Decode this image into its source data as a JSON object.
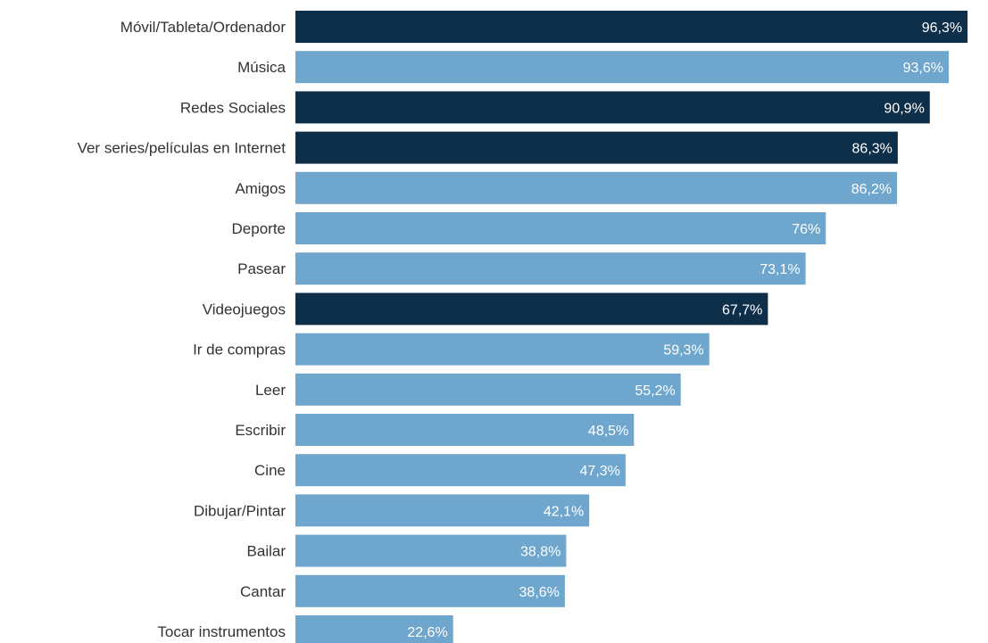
{
  "chart_data": {
    "type": "bar",
    "orientation": "horizontal",
    "title": "",
    "xlabel": "",
    "ylabel": "",
    "grid": false,
    "legend": "none",
    "categories": [
      "Móvil/Tableta/Ordenador",
      "Música",
      "Redes Sociales",
      "Ver series/películas en Internet",
      "Amigos",
      "Deporte",
      "Pasear",
      "Videojuegos",
      "Ir de compras",
      "Leer",
      "Escribir",
      "Cine",
      "Dibujar/Pintar",
      "Bailar",
      "Cantar",
      "Tocar instrumentos"
    ],
    "values": [
      96.3,
      93.6,
      90.9,
      86.3,
      86.2,
      76,
      73.1,
      67.7,
      59.3,
      55.2,
      48.5,
      47.3,
      42.1,
      38.8,
      38.6,
      22.6
    ],
    "value_labels": [
      "96,3%",
      "93,6%",
      "90,9%",
      "86,3%",
      "86,2%",
      "76%",
      "73,1%",
      "67,7%",
      "59,3%",
      "55,2%",
      "48,5%",
      "47,3%",
      "42,1%",
      "38,8%",
      "38,6%",
      "22,6%"
    ],
    "highlighted": [
      true,
      false,
      true,
      true,
      false,
      false,
      false,
      true,
      false,
      false,
      false,
      false,
      false,
      false,
      false,
      false
    ],
    "xlim": [
      0,
      100
    ],
    "colors": {
      "highlight": "#0e2f4a",
      "normal": "#6fa6cd",
      "label": "#333333",
      "value_label": "#ffffff"
    }
  }
}
